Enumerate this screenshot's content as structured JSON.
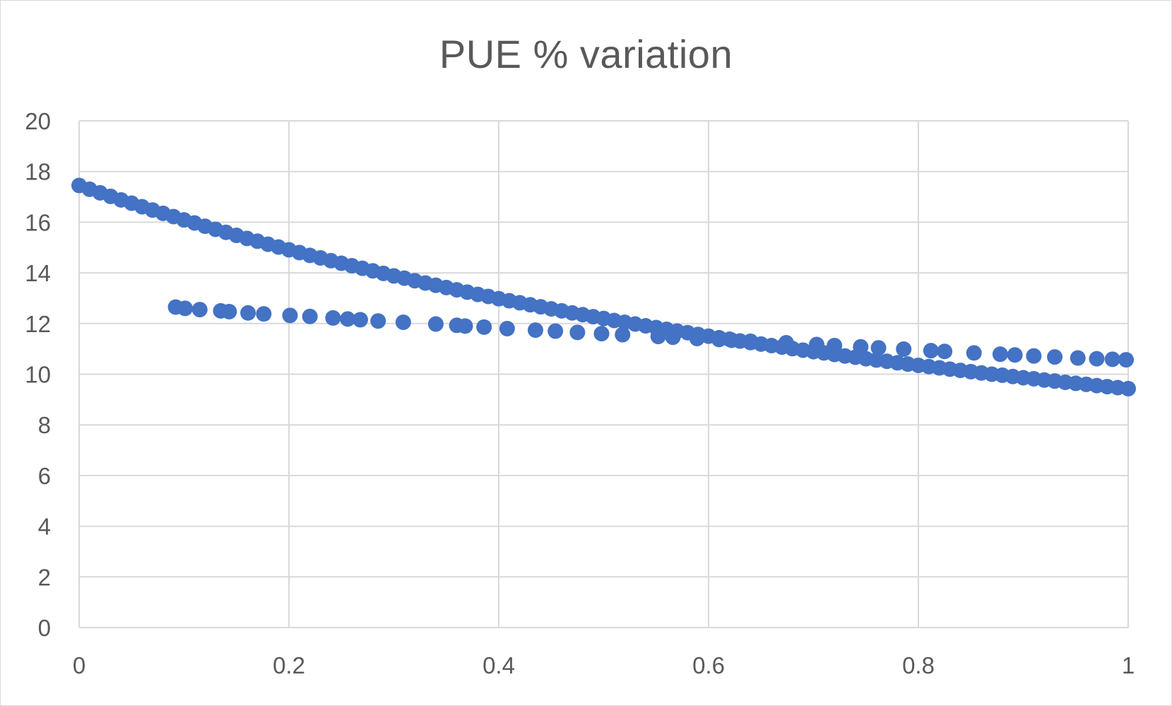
{
  "chart_data": {
    "type": "scatter",
    "title": "PUE % variation",
    "xlabel": "",
    "ylabel": "",
    "xlim": [
      0,
      1
    ],
    "ylim": [
      0,
      20
    ],
    "x_ticks": [
      {
        "value": 0,
        "label": "0"
      },
      {
        "value": 0.2,
        "label": "0.2"
      },
      {
        "value": 0.4,
        "label": "0.4"
      },
      {
        "value": 0.6,
        "label": "0.6"
      },
      {
        "value": 0.8,
        "label": "0.8"
      },
      {
        "value": 1,
        "label": "1"
      }
    ],
    "y_ticks": [
      {
        "value": 0,
        "label": "0"
      },
      {
        "value": 2,
        "label": "2"
      },
      {
        "value": 4,
        "label": "4"
      },
      {
        "value": 6,
        "label": "6"
      },
      {
        "value": 8,
        "label": "8"
      },
      {
        "value": 10,
        "label": "10"
      },
      {
        "value": 12,
        "label": "12"
      },
      {
        "value": 14,
        "label": "14"
      },
      {
        "value": 16,
        "label": "16"
      },
      {
        "value": 18,
        "label": "18"
      },
      {
        "value": 20,
        "label": "20"
      }
    ],
    "grid": true,
    "marker_color": "#4472c4",
    "series": [
      {
        "name": "",
        "x": [
          0,
          0.01,
          0.02,
          0.03,
          0.04,
          0.05,
          0.06,
          0.07,
          0.08,
          0.09,
          0.1,
          0.11,
          0.12,
          0.13,
          0.14,
          0.15,
          0.16,
          0.17,
          0.18,
          0.19,
          0.2,
          0.21,
          0.22,
          0.23,
          0.24,
          0.25,
          0.26,
          0.27,
          0.28,
          0.29,
          0.3,
          0.31,
          0.32,
          0.33,
          0.34,
          0.35,
          0.36,
          0.37,
          0.38,
          0.39,
          0.4,
          0.41,
          0.42,
          0.43,
          0.44,
          0.45,
          0.46,
          0.47,
          0.48,
          0.49,
          0.5,
          0.51,
          0.52,
          0.53,
          0.54,
          0.55,
          0.56,
          0.57,
          0.58,
          0.59,
          0.6,
          0.61,
          0.62,
          0.63,
          0.64,
          0.65,
          0.66,
          0.67,
          0.68,
          0.69,
          0.7,
          0.71,
          0.72,
          0.73,
          0.74,
          0.75,
          0.76,
          0.77,
          0.78,
          0.79,
          0.8,
          0.81,
          0.82,
          0.83,
          0.84,
          0.85,
          0.86,
          0.87,
          0.88,
          0.89,
          0.9,
          0.91,
          0.92,
          0.93,
          0.94,
          0.95,
          0.96,
          0.97,
          0.98,
          0.99,
          1
        ],
        "y": [
          17.45,
          17.3,
          17.16,
          17.02,
          16.88,
          16.75,
          16.61,
          16.48,
          16.35,
          16.22,
          16.09,
          15.97,
          15.84,
          15.72,
          15.6,
          15.48,
          15.36,
          15.25,
          15.13,
          15.02,
          14.91,
          14.8,
          14.69,
          14.59,
          14.48,
          14.38,
          14.28,
          14.18,
          14.08,
          13.98,
          13.88,
          13.79,
          13.69,
          13.6,
          13.51,
          13.42,
          13.33,
          13.24,
          13.15,
          13.07,
          12.98,
          12.9,
          12.82,
          12.74,
          12.66,
          12.58,
          12.5,
          12.42,
          12.35,
          12.27,
          12.2,
          12.12,
          12.05,
          11.98,
          11.91,
          11.84,
          11.77,
          11.7,
          11.64,
          11.57,
          11.5,
          11.44,
          11.38,
          11.31,
          11.25,
          11.19,
          11.13,
          11.07,
          11.01,
          10.95,
          10.89,
          10.84,
          10.78,
          10.72,
          10.67,
          10.61,
          10.56,
          10.51,
          10.45,
          10.4,
          10.35,
          10.3,
          10.25,
          10.2,
          10.15,
          10.1,
          10.05,
          10.0,
          9.96,
          9.91,
          9.86,
          9.82,
          9.77,
          9.73,
          9.68,
          9.64,
          9.6,
          9.55,
          9.51,
          9.47,
          9.43
        ]
      },
      {
        "name": "",
        "x": [
          0.092,
          0.101,
          0.115,
          0.135,
          0.143,
          0.161,
          0.176,
          0.201,
          0.22,
          0.242,
          0.256,
          0.268,
          0.285,
          0.309,
          0.34,
          0.36,
          0.368,
          0.386,
          0.408,
          0.435,
          0.454,
          0.475,
          0.498,
          0.518,
          0.552,
          0.566,
          0.589,
          0.61,
          0.622,
          0.64,
          0.674,
          0.703,
          0.72,
          0.745,
          0.762,
          0.786,
          0.812,
          0.825,
          0.853,
          0.878,
          0.892,
          0.91,
          0.93,
          0.952,
          0.97,
          0.985,
          0.998
        ],
        "y": [
          12.65,
          12.6,
          12.55,
          12.5,
          12.47,
          12.42,
          12.38,
          12.32,
          12.28,
          12.22,
          12.18,
          12.15,
          12.1,
          12.05,
          11.98,
          11.93,
          11.9,
          11.86,
          11.8,
          11.74,
          11.7,
          11.65,
          11.6,
          11.56,
          11.49,
          11.46,
          11.41,
          11.37,
          11.34,
          11.3,
          11.24,
          11.17,
          11.13,
          11.08,
          11.04,
          10.99,
          10.93,
          10.9,
          10.84,
          10.79,
          10.76,
          10.72,
          10.68,
          10.64,
          10.61,
          10.59,
          10.57
        ]
      }
    ]
  }
}
